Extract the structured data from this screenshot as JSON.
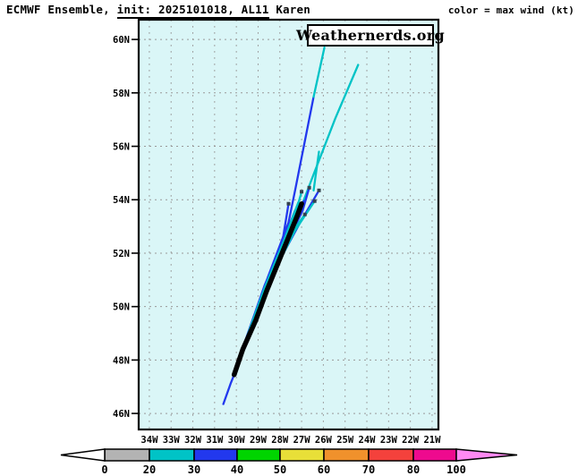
{
  "header": {
    "title_prefix": "ECMWF Ensemble, ",
    "title_init": "init: 2025101018, AL11",
    "title_storm": " Karen",
    "color_caption": "color = max wind (kt)"
  },
  "watermark": {
    "label": "Weathernerds.org"
  },
  "chart_data": {
    "type": "line",
    "subtype": "tropical-cyclone-ensemble-tracks",
    "title": "ECMWF Ensemble, init: 2025101018, AL11 Karen",
    "model": "ECMWF Ensemble",
    "init_time": "2025101018",
    "storm_id": "AL11",
    "storm_name": "Karen",
    "legend": "color = max wind (kt)",
    "colors": {
      "ocean": "#daf6f7",
      "grid": "#999999",
      "frame": "#000000",
      "marker": "#33424e",
      "arrow_left": "#ffffff"
    },
    "axes": {
      "bounds": {
        "lon_min": -34.49,
        "lon_max": -20.71,
        "lat_min": 45.4,
        "lat_max": 60.74
      },
      "lon_ticks": [
        {
          "lon": -34,
          "label": "34W"
        },
        {
          "lon": -33,
          "label": "33W"
        },
        {
          "lon": -32,
          "label": "32W"
        },
        {
          "lon": -31,
          "label": "31W"
        },
        {
          "lon": -30,
          "label": "30W"
        },
        {
          "lon": -29,
          "label": "29W"
        },
        {
          "lon": -28,
          "label": "28W"
        },
        {
          "lon": -27,
          "label": "27W"
        },
        {
          "lon": -26,
          "label": "26W"
        },
        {
          "lon": -25,
          "label": "25W"
        },
        {
          "lon": -24,
          "label": "24W"
        },
        {
          "lon": -23,
          "label": "23W"
        },
        {
          "lon": -22,
          "label": "22W"
        },
        {
          "lon": -21,
          "label": "21W"
        }
      ],
      "lat_ticks": [
        {
          "lat": 46,
          "label": "46N"
        },
        {
          "lat": 48,
          "label": "48N"
        },
        {
          "lat": 50,
          "label": "50N"
        },
        {
          "lat": 52,
          "label": "52N"
        },
        {
          "lat": 54,
          "label": "54N"
        },
        {
          "lat": 56,
          "label": "56N"
        },
        {
          "lat": 58,
          "label": "58N"
        },
        {
          "lat": 60,
          "label": "60N"
        }
      ]
    },
    "wind_bins": [
      {
        "range": "0-20",
        "color": "#b3b3b3"
      },
      {
        "range": "20-30",
        "color": "#00c3c6"
      },
      {
        "range": "30-40",
        "color": "#2238ee"
      },
      {
        "range": "40-50",
        "color": "#00d400"
      },
      {
        "range": "50-60",
        "color": "#e8df38"
      },
      {
        "range": "60-70",
        "color": "#f0912c"
      },
      {
        "range": "70-80",
        "color": "#f4413c"
      },
      {
        "range": "80-100",
        "color": "#ee0a8e"
      },
      {
        "range": "100+",
        "color": "#ff8af2"
      }
    ],
    "colorbar_ticks": [
      "0",
      "20",
      "30",
      "40",
      "50",
      "60",
      "70",
      "80",
      "100"
    ],
    "mean_track": {
      "color": "#000000",
      "points": [
        [
          -30.1,
          47.45
        ],
        [
          -29.7,
          48.4
        ],
        [
          -29.1,
          49.5
        ],
        [
          -28.6,
          50.6
        ],
        [
          -28.0,
          51.8
        ],
        [
          -27.5,
          52.8
        ],
        [
          -27.2,
          53.4
        ],
        [
          -27.0,
          53.85
        ]
      ]
    },
    "members": [
      {
        "id": "m01",
        "segments": [
          {
            "wind": "20-30",
            "points": [
              [
                -30.1,
                47.45
              ],
              [
                -29.45,
                48.8
              ]
            ]
          },
          {
            "wind": "30-40",
            "points": [
              [
                -29.45,
                48.8
              ],
              [
                -28.55,
                51.1
              ],
              [
                -27.6,
                53.15
              ],
              [
                -27.3,
                54.35
              ],
              [
                -26.45,
                57.85
              ]
            ]
          },
          {
            "wind": "20-30",
            "points": [
              [
                -26.45,
                57.85
              ],
              [
                -25.95,
                59.7
              ]
            ]
          }
        ]
      },
      {
        "id": "m02",
        "segments": [
          {
            "wind": "20-30",
            "points": [
              [
                -30.1,
                47.45
              ],
              [
                -29.35,
                49.1
              ],
              [
                -28.45,
                50.9
              ],
              [
                -27.5,
                52.7
              ],
              [
                -26.45,
                54.95
              ],
              [
                -25.45,
                57.05
              ],
              [
                -24.4,
                59.05
              ]
            ]
          }
        ]
      },
      {
        "id": "m03",
        "segments": [
          {
            "wind": "30-40",
            "points": [
              [
                -30.1,
                47.45
              ],
              [
                -29.15,
                49.6
              ],
              [
                -28.1,
                51.6
              ],
              [
                -27.1,
                53.1
              ],
              [
                -26.2,
                54.35
              ]
            ]
          }
        ]
      },
      {
        "id": "m04",
        "segments": [
          {
            "wind": "20-30",
            "points": [
              [
                -30.1,
                47.45
              ],
              [
                -29.25,
                49.35
              ]
            ]
          },
          {
            "wind": "30-40",
            "points": [
              [
                -29.25,
                49.35
              ],
              [
                -28.3,
                51.25
              ]
            ]
          },
          {
            "wind": "20-30",
            "points": [
              [
                -28.3,
                51.25
              ],
              [
                -27.3,
                52.85
              ],
              [
                -26.4,
                53.95
              ]
            ]
          }
        ]
      },
      {
        "id": "m05",
        "segments": [
          {
            "wind": "30-40",
            "points": [
              [
                -30.1,
                47.45
              ],
              [
                -29.0,
                49.9
              ],
              [
                -27.9,
                52.0
              ],
              [
                -26.95,
                53.6
              ],
              [
                -26.65,
                54.45
              ]
            ]
          }
        ]
      },
      {
        "id": "m06",
        "segments": [
          {
            "wind": "20-30",
            "points": [
              [
                -30.1,
                47.45
              ],
              [
                -29.15,
                49.7
              ],
              [
                -28.1,
                51.7
              ],
              [
                -27.3,
                53.45
              ],
              [
                -27.0,
                54.3
              ]
            ]
          }
        ]
      },
      {
        "id": "m07",
        "segments": [
          {
            "wind": "30-40",
            "points": [
              [
                -30.1,
                47.45
              ],
              [
                -29.35,
                49.15
              ],
              [
                -28.55,
                50.8
              ],
              [
                -27.9,
                52.35
              ],
              [
                -27.6,
                53.85
              ]
            ]
          }
        ]
      },
      {
        "id": "m08",
        "segments": [
          {
            "wind": "20-30",
            "points": [
              [
                -30.1,
                47.45
              ],
              [
                -29.1,
                49.75
              ],
              [
                -28.05,
                51.85
              ],
              [
                -27.2,
                53.05
              ],
              [
                -26.85,
                53.45
              ]
            ]
          }
        ]
      },
      {
        "id": "m09",
        "segments": [
          {
            "wind": "30-40",
            "points": [
              [
                -30.6,
                46.35
              ],
              [
                -30.25,
                47.15
              ],
              [
                -30.1,
                47.45
              ],
              [
                -29.6,
                48.7
              ],
              [
                -28.7,
                50.8
              ],
              [
                -27.7,
                52.75
              ],
              [
                -27.3,
                53.6
              ]
            ]
          }
        ]
      },
      {
        "id": "m10",
        "segments": [
          {
            "wind": "20-30",
            "points": [
              [
                -26.45,
                54.35
              ],
              [
                -26.2,
                55.8
              ]
            ]
          }
        ]
      },
      {
        "id": "m11",
        "segments": [
          {
            "wind": "20-30",
            "points": [
              [
                -30.1,
                47.45
              ],
              [
                -29.5,
                48.9
              ],
              [
                -28.7,
                50.7
              ],
              [
                -27.8,
                52.5
              ],
              [
                -27.15,
                53.9
              ]
            ]
          }
        ]
      },
      {
        "id": "m12",
        "segments": [
          {
            "wind": "30-40",
            "points": [
              [
                -30.1,
                47.45
              ],
              [
                -29.3,
                49.2
              ],
              [
                -28.35,
                51.15
              ],
              [
                -27.45,
                52.85
              ],
              [
                -26.9,
                53.95
              ]
            ]
          }
        ]
      }
    ],
    "endpoint_markers": [
      [
        -27.6,
        53.85
      ],
      [
        -27.0,
        54.3
      ],
      [
        -26.85,
        53.45
      ],
      [
        -26.65,
        54.45
      ],
      [
        -26.4,
        53.95
      ],
      [
        -26.2,
        54.35
      ]
    ]
  }
}
